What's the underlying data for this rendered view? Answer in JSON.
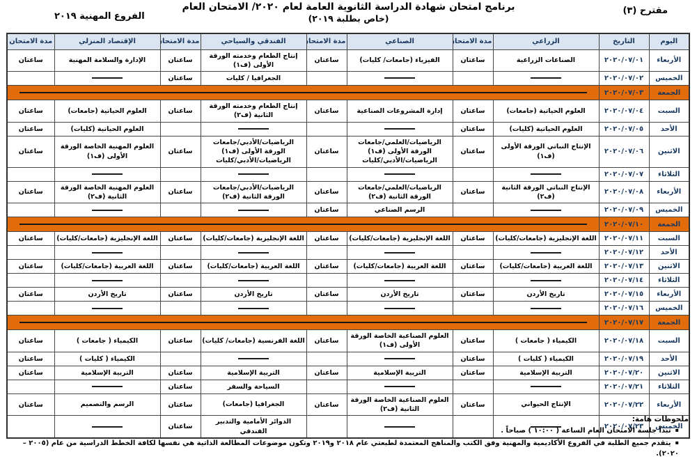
{
  "page": {
    "proposal": "مقترح (٣)",
    "title_line1": "برنامج امتحان شهادة الدراسة الثانوية العامة لعام ٢٠٢٠/ الامتحان العام",
    "title_line2": "(خاص بطلبة ٢٠١٩)",
    "branches": "الفروع المهنية ٢٠١٩"
  },
  "colors": {
    "header_bg": "#dbe5f1",
    "friday_orange": "#e36c0a",
    "navy_text": "#17375e",
    "border": "#454545"
  },
  "icons": {
    "bullet": "▪"
  },
  "table": {
    "columns": [
      "اليوم",
      "التاريخ",
      "الزراعي",
      "مدة الامتحان",
      "الصناعي",
      "مدة الامتحان",
      "الفندقي والسياحي",
      "مدة الامتحان",
      "الإقتصاد المنزلي",
      "مدة الامتحان"
    ],
    "dash": "———",
    "duration_word": "ساعتان",
    "rows": [
      {
        "day": "الأربعاء",
        "date": "٢٠٢٠/٠٧/٠١",
        "friday": false,
        "cells": [
          {
            "subject": "الصناعات الزراعية",
            "dur": "ساعتان"
          },
          {
            "subject": "الفيزياء (جامعات/ كليات)",
            "dur": "ساعتان"
          },
          {
            "subject": "إنتاج الطعام وخدمته الورقة الأولى (ف١)",
            "dur": "ساعتان"
          },
          {
            "subject": "الإدارة والسلامة المهنية",
            "dur": "ساعتان"
          }
        ]
      },
      {
        "day": "الخميس",
        "date": "٢٠٢٠/٠٧/٠٢",
        "friday": false,
        "cells": [
          {
            "subject": "———",
            "dur": ""
          },
          {
            "subject": "———",
            "dur": ""
          },
          {
            "subject": "الجغرافيا / كليات",
            "dur": "ساعتان"
          },
          {
            "subject": "———",
            "dur": ""
          }
        ]
      },
      {
        "day": "الجمعة",
        "date": "٢٠٢٠/٠٧/٠٣",
        "friday": true,
        "cells": []
      },
      {
        "day": "السبت",
        "date": "٢٠٢٠/٠٧/٠٤",
        "friday": false,
        "cells": [
          {
            "subject": "العلوم الحياتية (جامعات)",
            "dur": "ساعتان"
          },
          {
            "subject": "إدارة المشروعات الصناعية",
            "dur": "ساعتان"
          },
          {
            "subject": "إنتاج الطعام وخدمته الورقة الثانية (ف٢)",
            "dur": "ساعتان"
          },
          {
            "subject": "العلوم الحياتية (جامعات)",
            "dur": "ساعتان"
          }
        ]
      },
      {
        "day": "الأحد",
        "date": "٢٠٢٠/٠٧/٠٥",
        "friday": false,
        "cells": [
          {
            "subject": "العلوم الحياتية (كليات)",
            "dur": "ساعتان"
          },
          {
            "subject": "———",
            "dur": ""
          },
          {
            "subject": "———",
            "dur": ""
          },
          {
            "subject": "العلوم الحياتية (كليات)",
            "dur": "ساعتان"
          }
        ]
      },
      {
        "day": "الاثنين",
        "date": "٢٠٢٠/٠٧/٠٦",
        "friday": false,
        "cells": [
          {
            "subject": "الإنتاج النباتي الورقة الأولى (ف١)",
            "dur": "ساعتان"
          },
          {
            "subject": "الرياضيات/العلمي/جامعات الورقة الأولى (ف١)\nالرياضيات/الأدبي/كليات",
            "dur": "ساعتان"
          },
          {
            "subject": "الرياضيات/الأدبي/جامعات الورقة الأولى (ف١)\nالرياضيات/الأدبي/كليات",
            "dur": "ساعتان"
          },
          {
            "subject": "العلوم المهنية الخاصة الورقة الأولى (ف١)",
            "dur": "ساعتان"
          }
        ]
      },
      {
        "day": "الثلاثاء",
        "date": "٢٠٢٠/٠٧/٠٧",
        "friday": false,
        "cells": [
          {
            "subject": "———",
            "dur": ""
          },
          {
            "subject": "———",
            "dur": ""
          },
          {
            "subject": "———",
            "dur": ""
          },
          {
            "subject": "———",
            "dur": ""
          }
        ]
      },
      {
        "day": "الأربعاء",
        "date": "٢٠٢٠/٠٧/٠٨",
        "friday": false,
        "cells": [
          {
            "subject": "الإنتاج النباتي الورقة الثانية (ف٢)",
            "dur": "ساعتان"
          },
          {
            "subject": "الرياضيات/العلمي/جامعات الورقة الثانية (ف٢)",
            "dur": "ساعتان"
          },
          {
            "subject": "الرياضيات/الأدبي/جامعات الورقة الثانية (ف٢)",
            "dur": "ساعتان"
          },
          {
            "subject": "العلوم المهنية الخاصة الورقة الثانية (ف٢)",
            "dur": "ساعتان"
          }
        ]
      },
      {
        "day": "الخميس",
        "date": "٢٠٢٠/٠٧/٠٩",
        "friday": false,
        "cells": [
          {
            "subject": "———",
            "dur": ""
          },
          {
            "subject": "الرسم الصناعي",
            "dur": "ساعتان"
          },
          {
            "subject": "———",
            "dur": ""
          },
          {
            "subject": "———",
            "dur": ""
          }
        ]
      },
      {
        "day": "الجمعة",
        "date": "٢٠٢٠/٠٧/١٠",
        "friday": true,
        "cells": []
      },
      {
        "day": "السبت",
        "date": "٢٠٢٠/٠٧/١١",
        "friday": false,
        "cells": [
          {
            "subject": "اللغة الإنجليزية (جامعات/كليات)",
            "dur": "ساعتان"
          },
          {
            "subject": "اللغة الإنجليزية (جامعات/كليات)",
            "dur": "ساعتان"
          },
          {
            "subject": "اللغة الإنجليزية (جامعات/كليات)",
            "dur": "ساعتان"
          },
          {
            "subject": "اللغة الإنجليزية (جامعات/كليات)",
            "dur": "ساعتان"
          }
        ]
      },
      {
        "day": "الأحد",
        "date": "٢٠٢٠/٠٧/١٢",
        "friday": false,
        "cells": [
          {
            "subject": "———",
            "dur": ""
          },
          {
            "subject": "———",
            "dur": ""
          },
          {
            "subject": "———",
            "dur": ""
          },
          {
            "subject": "———",
            "dur": ""
          }
        ]
      },
      {
        "day": "الاثنين",
        "date": "٢٠٢٠/٠٧/١٣",
        "friday": false,
        "cells": [
          {
            "subject": "اللغة العربية (جامعات/كليات)",
            "dur": "ساعتان"
          },
          {
            "subject": "اللغة العربية (جامعات/كليات)",
            "dur": "ساعتان"
          },
          {
            "subject": "اللغة العربية (جامعات/كليات)",
            "dur": "ساعتان"
          },
          {
            "subject": "اللغة العربية (جامعات/كليات)",
            "dur": "ساعتان"
          }
        ]
      },
      {
        "day": "الثلاثاء",
        "date": "٢٠٢٠/٠٧/١٤",
        "friday": false,
        "cells": [
          {
            "subject": "———",
            "dur": ""
          },
          {
            "subject": "———",
            "dur": ""
          },
          {
            "subject": "———",
            "dur": ""
          },
          {
            "subject": "———",
            "dur": ""
          }
        ]
      },
      {
        "day": "الأربعاء",
        "date": "٢٠٢٠/٠٧/١٥",
        "friday": false,
        "cells": [
          {
            "subject": "تاريخ الأردن",
            "dur": "ساعتان"
          },
          {
            "subject": "تاريخ الأردن",
            "dur": "ساعتان"
          },
          {
            "subject": "تاريخ الأردن",
            "dur": "ساعتان"
          },
          {
            "subject": "تاريخ الأردن",
            "dur": "ساعتان"
          }
        ]
      },
      {
        "day": "الخميس",
        "date": "٢٠٢٠/٠٧/١٦",
        "friday": false,
        "cells": [
          {
            "subject": "———",
            "dur": ""
          },
          {
            "subject": "———",
            "dur": ""
          },
          {
            "subject": "———",
            "dur": ""
          },
          {
            "subject": "———",
            "dur": ""
          }
        ]
      },
      {
        "day": "الجمعة",
        "date": "٢٠٢٠/٠٧/١٧",
        "friday": true,
        "cells": []
      },
      {
        "day": "السبت",
        "date": "٢٠٢٠/٠٧/١٨",
        "friday": false,
        "cells": [
          {
            "subject": "الكيمياء ( جامعات )",
            "dur": "ساعتان"
          },
          {
            "subject": "العلوم الصناعية الخاصة الورقة الأولى (ف١)",
            "dur": "ساعتان"
          },
          {
            "subject": "اللغة الفرنسية (جامعات/ كليات)",
            "dur": "ساعتان"
          },
          {
            "subject": "الكيمياء ( جامعات )",
            "dur": "ساعتان"
          }
        ]
      },
      {
        "day": "الأحد",
        "date": "٢٠٢٠/٠٧/١٩",
        "friday": false,
        "cells": [
          {
            "subject": "الكيمياء ( كليات )",
            "dur": "ساعتان"
          },
          {
            "subject": "———",
            "dur": ""
          },
          {
            "subject": "———",
            "dur": ""
          },
          {
            "subject": "الكيمياء ( كليات )",
            "dur": "ساعتان"
          }
        ]
      },
      {
        "day": "الاثنين",
        "date": "٢٠٢٠/٠٧/٢٠",
        "friday": false,
        "cells": [
          {
            "subject": "التربية الإسلامية",
            "dur": "ساعتان"
          },
          {
            "subject": "التربية الإسلامية",
            "dur": "ساعتان"
          },
          {
            "subject": "التربية الإسلامية",
            "dur": "ساعتان"
          },
          {
            "subject": "التربية الإسلامية",
            "dur": "ساعتان"
          }
        ]
      },
      {
        "day": "الثلاثاء",
        "date": "٢٠٢٠/٠٧/٢١",
        "friday": false,
        "cells": [
          {
            "subject": "———",
            "dur": ""
          },
          {
            "subject": "———",
            "dur": ""
          },
          {
            "subject": "السياحة والسفر",
            "dur": "ساعتان"
          },
          {
            "subject": "———",
            "dur": ""
          }
        ]
      },
      {
        "day": "الأربعاء",
        "date": "٢٠٢٠/٠٧/٢٢",
        "friday": false,
        "cells": [
          {
            "subject": "الإنتاج الحيواني",
            "dur": "ساعتان"
          },
          {
            "subject": "العلوم الصناعية الخاصة الورقة الثانية (ف٢)",
            "dur": "ساعتان"
          },
          {
            "subject": "الجغرافيا (جامعات)",
            "dur": "ساعتان"
          },
          {
            "subject": "الرسم والتصميم",
            "dur": "ساعتان"
          }
        ]
      },
      {
        "day": "الخميس",
        "date": "٢٠٢٠/٠٧/٢٣",
        "friday": false,
        "cells": [
          {
            "subject": "———",
            "dur": ""
          },
          {
            "subject": "———",
            "dur": ""
          },
          {
            "subject": "الدوائر الأمامية والتدبير الفندقي",
            "dur": "ساعتان"
          },
          {
            "subject": "———",
            "dur": ""
          }
        ]
      }
    ]
  },
  "notes": {
    "heading": "ملحوظات هامة:",
    "items": [
      "تبدأ جلسة الامتحان العام الساعة ( ١٠:٠٠ ) صباحاً .",
      "يتقدم جميع الطلبة في الفروع الأكاديمية والمهنية وفق الكتب والمناهج المعتمدة لطبعتي عام ٢٠١٨ و٢٠١٩ وتكون موضوعات المطالعة الذاتية هي نفسها لكافة الخطط الدراسية من عام (٢٠٠٥ – ٢٠٢٠)."
    ]
  }
}
